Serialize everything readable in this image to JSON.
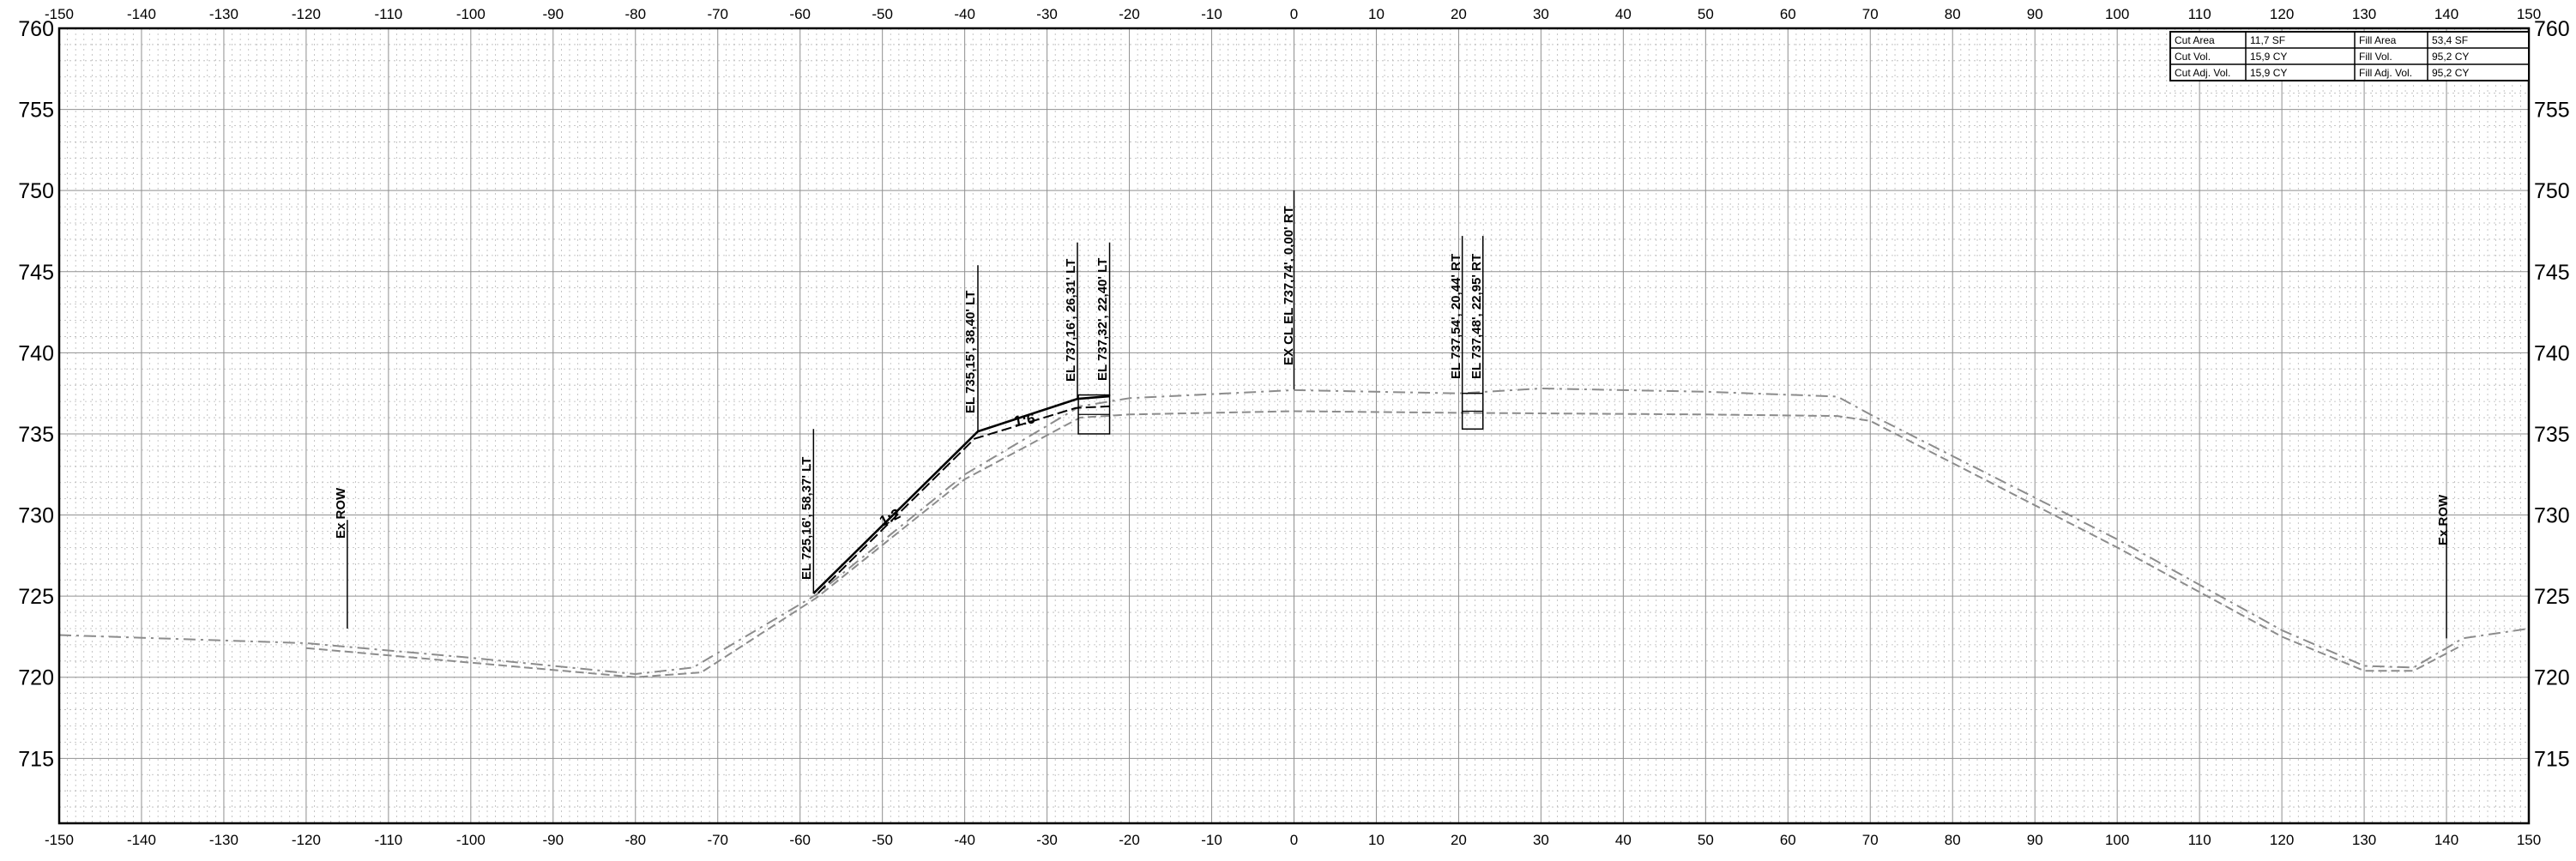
{
  "section_sheet": {
    "x_axis": {
      "min": -150,
      "max": 150,
      "step": 10
    },
    "y_axis": {
      "min": 711,
      "max": 760,
      "step": 5
    },
    "x_tick_labels": [
      "-150",
      "-140",
      "-130",
      "-120",
      "-110",
      "-100",
      "-90",
      "-80",
      "-70",
      "-60",
      "-50",
      "-40",
      "-30",
      "-20",
      "-10",
      "0",
      "10",
      "20",
      "30",
      "40",
      "50",
      "60",
      "70",
      "80",
      "90",
      "100",
      "110",
      "120",
      "130",
      "140",
      "150"
    ],
    "y_tick_labels": [
      "715",
      "720",
      "725",
      "730",
      "735",
      "740",
      "745",
      "750",
      "755",
      "760"
    ],
    "grid": {
      "major": true,
      "minor": true
    },
    "colors": {
      "grid_major": "#909090",
      "grid_minor": "#b8b8b8",
      "existing_ground": "#8c8c8c",
      "proposed": "#000000"
    }
  },
  "quantities": {
    "rows": [
      [
        "Cut Area",
        "11,7 SF",
        "Fill Area",
        "53,4 SF"
      ],
      [
        "Cut Vol.",
        "15,9 CY",
        "Fill Vol.",
        "95,2 CY"
      ],
      [
        "Cut Adj. Vol.",
        "15,9 CY",
        "Fill Adj. Vol.",
        "95,2 CY"
      ]
    ]
  },
  "annotations": {
    "row_left": "Ex ROW",
    "row_right": "Ex ROW",
    "toe_left": "EL 725,16', 58,37' LT",
    "hinge_left": "EL 735,15', 38,40' LT",
    "shoulder_outer_left": "EL 737,16', 26,31' LT",
    "shoulder_inner_left": "EL 737,32', 22,40' LT",
    "centerline": "EX CL EL 737,74', 0,00' RT",
    "shoulder_inner_right": "EL 737,54', 20,44' RT",
    "shoulder_outer_right": "EL 737,48', 22,95' RT",
    "slope_lower": "1:2",
    "slope_upper": "1:6"
  },
  "chart_data": {
    "type": "line",
    "xlim": [
      -150,
      150
    ],
    "ylim": [
      711,
      760
    ],
    "grid": true,
    "series": [
      {
        "points": [
          [
            -150,
            722.6
          ],
          [
            -120,
            722.1
          ],
          [
            -100,
            721.2
          ],
          [
            -80,
            720.2
          ],
          [
            -73,
            720.6
          ],
          [
            -58,
            725.1
          ],
          [
            -40,
            732.5
          ],
          [
            -26,
            736.7
          ],
          [
            -20,
            737.2
          ],
          [
            0,
            737.7
          ],
          [
            20,
            737.5
          ],
          [
            30,
            737.8
          ],
          [
            50,
            737.6
          ],
          [
            66,
            737.3
          ],
          [
            70,
            736.2
          ],
          [
            100,
            728.5
          ],
          [
            120,
            722.9
          ],
          [
            130,
            720.7
          ],
          [
            136,
            720.6
          ],
          [
            142,
            722.4
          ],
          [
            150,
            723.0
          ]
        ]
      },
      {
        "points": [
          [
            -120,
            721.8
          ],
          [
            -100,
            720.9
          ],
          [
            -80,
            720.0
          ],
          [
            -72,
            720.3
          ],
          [
            -58,
            724.9
          ],
          [
            -40,
            732.2
          ],
          [
            -26,
            736.0
          ],
          [
            -20,
            736.2
          ],
          [
            0,
            736.4
          ],
          [
            20,
            736.3
          ],
          [
            50,
            736.2
          ],
          [
            66,
            736.1
          ],
          [
            70,
            735.8
          ],
          [
            100,
            728.0
          ],
          [
            120,
            722.5
          ],
          [
            130,
            720.4
          ],
          [
            136,
            720.4
          ],
          [
            142,
            722.0
          ]
        ]
      },
      {
        "points": [
          [
            -58.37,
            725.16
          ],
          [
            -38.4,
            735.15
          ],
          [
            -26.31,
            737.16
          ],
          [
            -22.4,
            737.32
          ]
        ]
      },
      {
        "points": [
          [
            -57.8,
            725.2
          ],
          [
            -38.8,
            734.7
          ],
          [
            -26.5,
            736.6
          ],
          [
            -22.4,
            736.7
          ]
        ]
      }
    ]
  }
}
